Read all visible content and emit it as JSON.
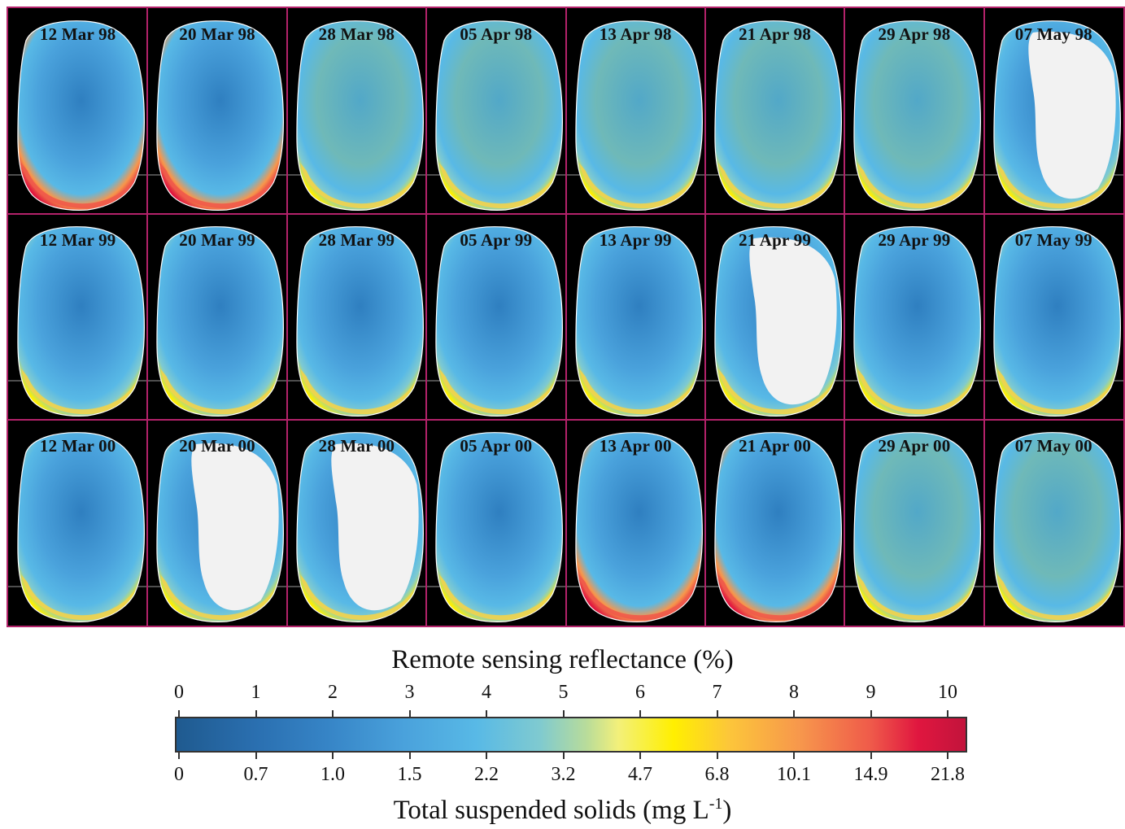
{
  "panels": [
    [
      "12 Mar 98",
      "20 Mar 98",
      "28 Mar 98",
      "05 Apr 98",
      "13 Apr 98",
      "21 Apr 98",
      "29 Apr 98",
      "07 May 98"
    ],
    [
      "12 Mar 99",
      "20 Mar 99",
      "28 Mar 99",
      "05 Apr 99",
      "13 Apr 99",
      "21 Apr 99",
      "29 Apr 99",
      "07 May 99"
    ],
    [
      "12 Mar 00",
      "20 Mar 00",
      "28 Mar 00",
      "05 Apr 00",
      "13 Apr 00",
      "21 Apr 00",
      "29 Apr 00",
      "07 May 00"
    ]
  ],
  "colorbar": {
    "top_title": "Remote sensing reflectance (%)",
    "top_ticks": [
      "0",
      "1",
      "2",
      "3",
      "4",
      "5",
      "6",
      "7",
      "8",
      "9",
      "10"
    ],
    "bottom_title_text": "Total suspended solids (mg L",
    "bottom_title_sup": "-1",
    "bottom_title_close": ")",
    "bottom_ticks": [
      "0",
      "0.7",
      "1.0",
      "1.5",
      "2.2",
      "3.2",
      "4.7",
      "6.8",
      "10.1",
      "14.9",
      "21.8"
    ]
  },
  "colors": {
    "frame": "#b3226a",
    "background": "#000000",
    "cloud": "#f2f2f2",
    "palette": [
      "#1f5a8f",
      "#3684c6",
      "#58b9e6",
      "#7fcad0",
      "#ffef00",
      "#f7974c",
      "#e0163f"
    ]
  }
}
